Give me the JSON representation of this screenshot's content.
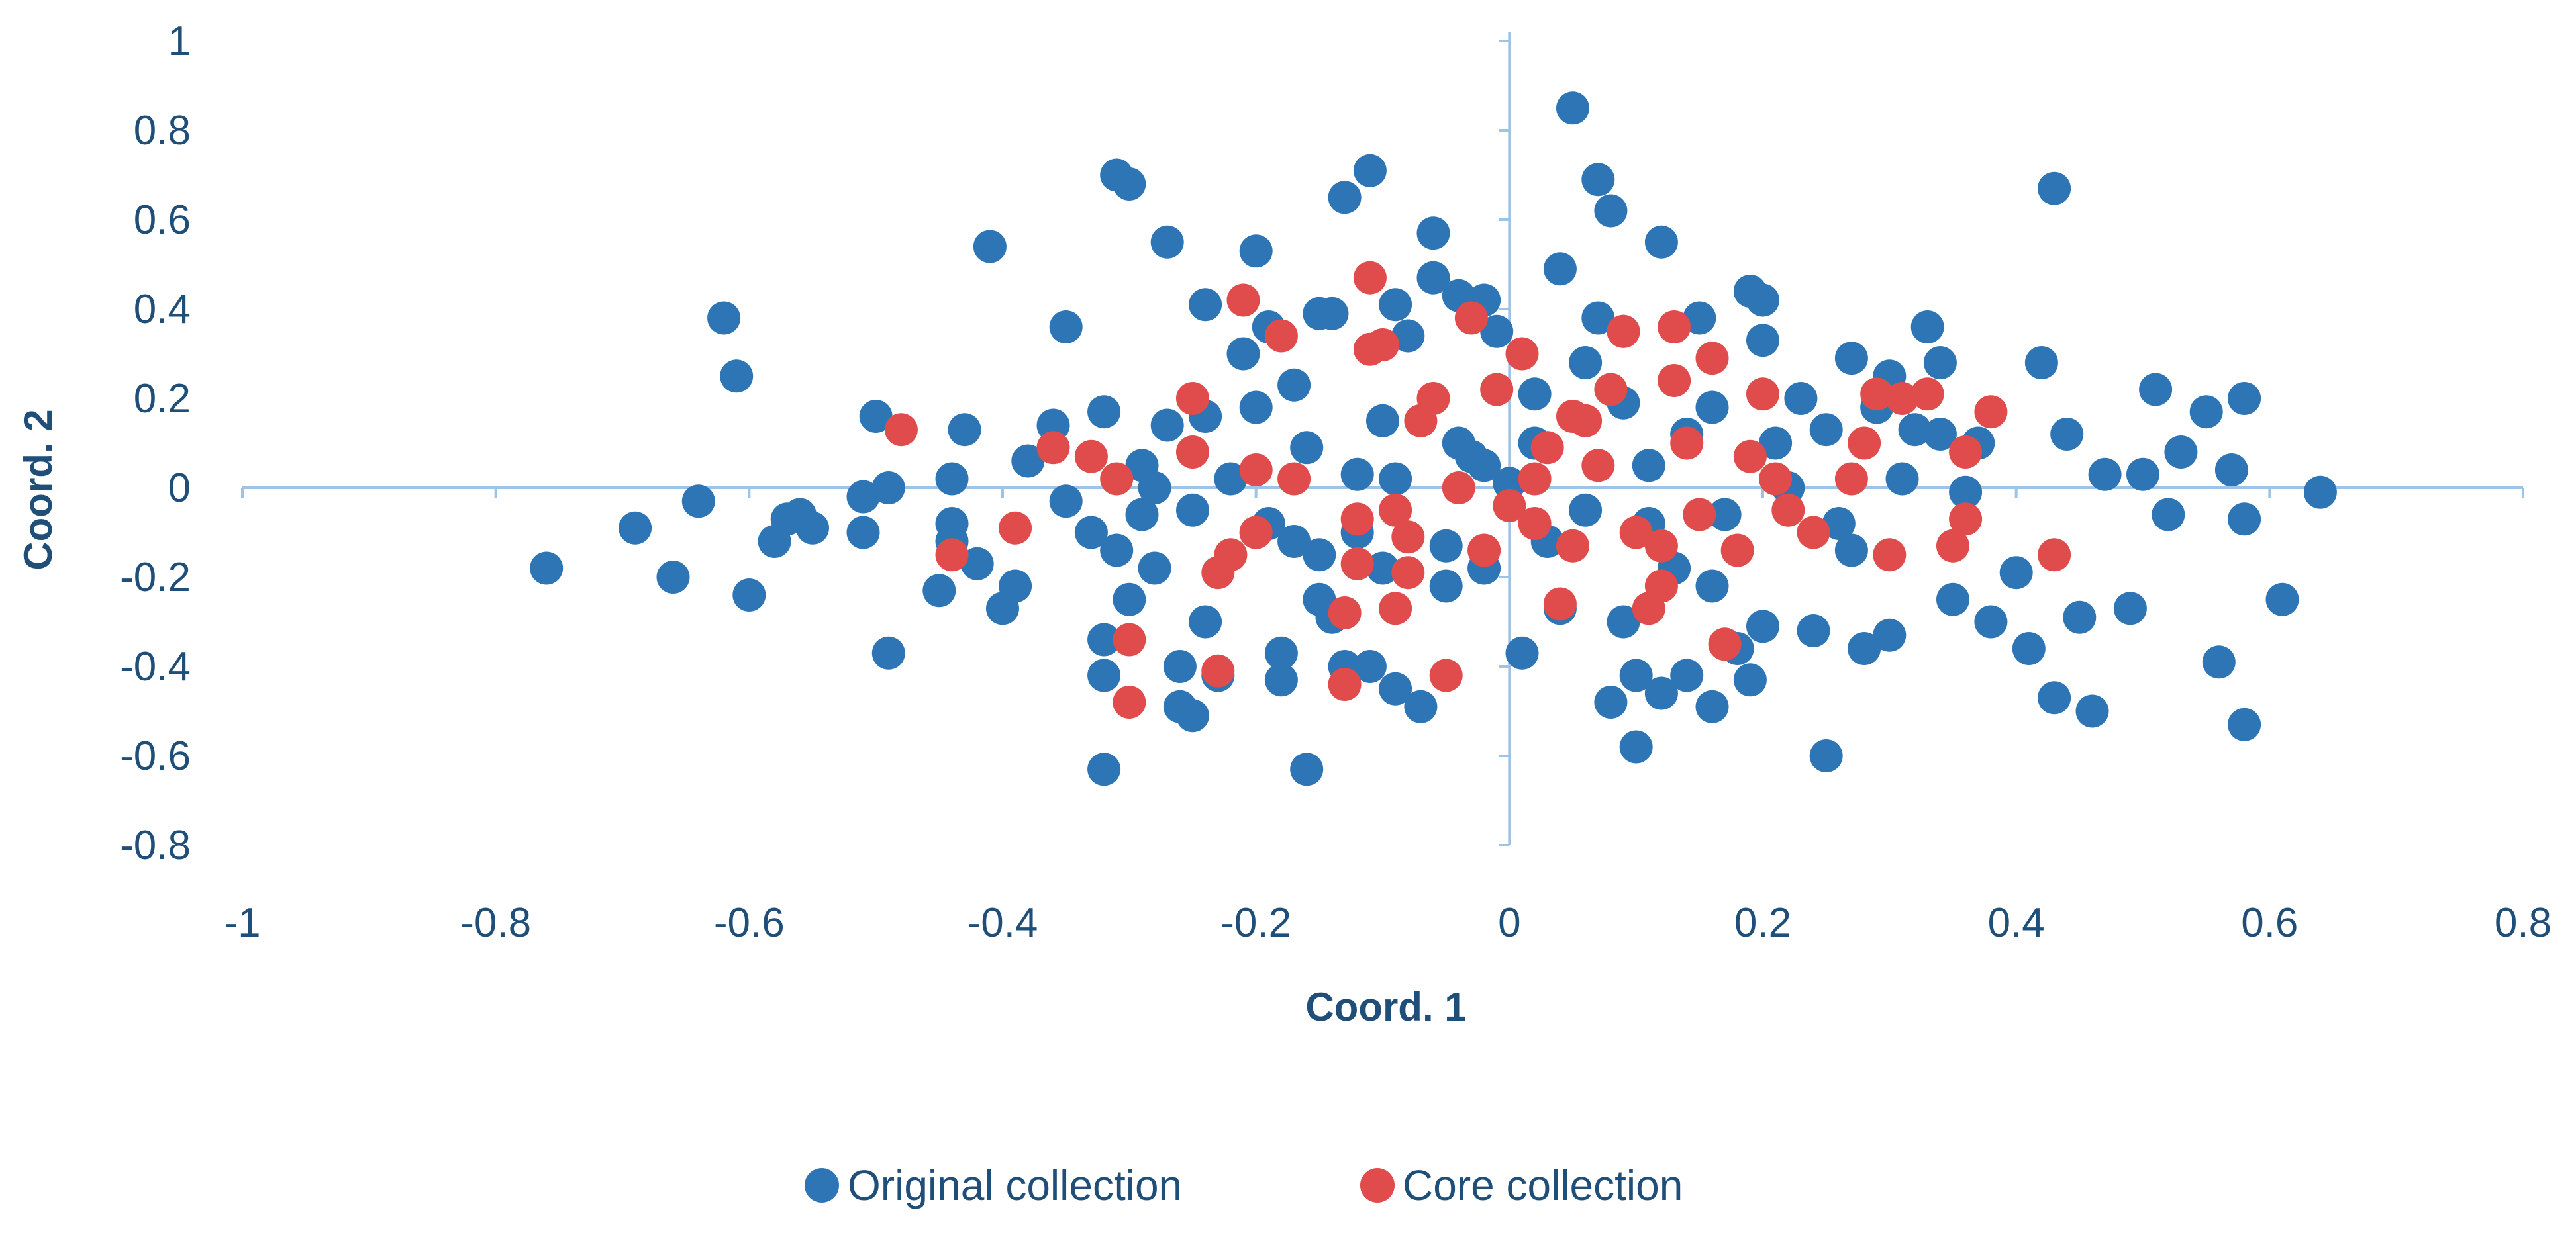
{
  "chart_data": {
    "type": "scatter",
    "title": "",
    "xlabel": "Coord. 1",
    "ylabel": "Coord. 2",
    "xlim": [
      -1,
      0.8
    ],
    "ylim": [
      -0.8,
      1
    ],
    "x_ticks": [
      "-1",
      "-0.8",
      "-0.6",
      "-0.4",
      "-0.2",
      "0",
      "0.2",
      "0.4",
      "0.6",
      "0.8"
    ],
    "y_ticks": [
      "1",
      "0.8",
      "0.6",
      "0.4",
      "0.2",
      "0",
      "-0.2",
      "-0.4",
      "-0.6",
      "-0.8"
    ],
    "grid": false,
    "legend_position": "bottom-center",
    "series": [
      {
        "name": "Original collection",
        "color": "#2e75b6",
        "points": [
          [
            -0.76,
            -0.18
          ],
          [
            -0.69,
            -0.09
          ],
          [
            -0.66,
            -0.2
          ],
          [
            -0.64,
            -0.03
          ],
          [
            -0.62,
            0.38
          ],
          [
            -0.61,
            0.25
          ],
          [
            -0.6,
            -0.24
          ],
          [
            -0.58,
            -0.12
          ],
          [
            -0.57,
            -0.07
          ],
          [
            -0.56,
            -0.06
          ],
          [
            -0.55,
            -0.09
          ],
          [
            -0.51,
            -0.1
          ],
          [
            -0.51,
            -0.02
          ],
          [
            -0.5,
            0.16
          ],
          [
            -0.49,
            0.0
          ],
          [
            -0.49,
            -0.37
          ],
          [
            -0.45,
            -0.23
          ],
          [
            -0.44,
            -0.12
          ],
          [
            -0.44,
            0.02
          ],
          [
            -0.44,
            -0.08
          ],
          [
            -0.43,
            0.13
          ],
          [
            -0.42,
            -0.17
          ],
          [
            -0.4,
            -0.27
          ],
          [
            -0.39,
            -0.22
          ],
          [
            -0.41,
            0.54
          ],
          [
            -0.38,
            0.06
          ],
          [
            -0.35,
            0.36
          ],
          [
            -0.36,
            0.14
          ],
          [
            -0.35,
            -0.03
          ],
          [
            -0.33,
            -0.1
          ],
          [
            -0.32,
            0.17
          ],
          [
            -0.31,
            0.7
          ],
          [
            -0.3,
            0.68
          ],
          [
            -0.32,
            -0.34
          ],
          [
            -0.32,
            -0.42
          ],
          [
            -0.32,
            -0.63
          ],
          [
            -0.31,
            -0.14
          ],
          [
            -0.3,
            -0.25
          ],
          [
            -0.29,
            -0.06
          ],
          [
            -0.29,
            0.05
          ],
          [
            -0.28,
            -0.18
          ],
          [
            -0.27,
            0.14
          ],
          [
            -0.27,
            0.55
          ],
          [
            -0.26,
            -0.4
          ],
          [
            -0.26,
            -0.49
          ],
          [
            -0.25,
            -0.51
          ],
          [
            -0.25,
            -0.05
          ],
          [
            -0.24,
            0.16
          ],
          [
            -0.24,
            -0.3
          ],
          [
            -0.24,
            0.41
          ],
          [
            -0.23,
            -0.42
          ],
          [
            -0.22,
            0.02
          ],
          [
            -0.21,
            0.3
          ],
          [
            -0.2,
            0.53
          ],
          [
            -0.2,
            0.18
          ],
          [
            -0.19,
            -0.08
          ],
          [
            -0.19,
            0.36
          ],
          [
            -0.18,
            -0.37
          ],
          [
            -0.18,
            -0.43
          ],
          [
            -0.17,
            -0.12
          ],
          [
            -0.17,
            0.23
          ],
          [
            -0.16,
            0.09
          ],
          [
            -0.16,
            -0.63
          ],
          [
            -0.15,
            -0.15
          ],
          [
            -0.15,
            0.39
          ],
          [
            -0.14,
            -0.29
          ],
          [
            -0.14,
            0.39
          ],
          [
            -0.13,
            -0.4
          ],
          [
            -0.13,
            0.65
          ],
          [
            -0.12,
            0.03
          ],
          [
            -0.11,
            0.71
          ],
          [
            -0.11,
            -0.4
          ],
          [
            -0.1,
            0.15
          ],
          [
            -0.1,
            -0.18
          ],
          [
            -0.09,
            0.41
          ],
          [
            -0.09,
            -0.45
          ],
          [
            -0.08,
            0.34
          ],
          [
            -0.07,
            -0.49
          ],
          [
            -0.06,
            0.47
          ],
          [
            -0.06,
            0.57
          ],
          [
            -0.05,
            -0.13
          ],
          [
            -0.04,
            0.1
          ],
          [
            -0.04,
            0.43
          ],
          [
            -0.03,
            0.07
          ],
          [
            -0.02,
            0.42
          ],
          [
            -0.02,
            -0.18
          ],
          [
            -0.01,
            0.35
          ],
          [
            0.0,
            0.01
          ],
          [
            0.01,
            -0.37
          ],
          [
            0.02,
            0.21
          ],
          [
            0.03,
            -0.12
          ],
          [
            0.04,
            0.49
          ],
          [
            0.05,
            0.85
          ],
          [
            0.06,
            0.28
          ],
          [
            0.07,
            0.38
          ],
          [
            0.07,
            0.69
          ],
          [
            0.08,
            0.62
          ],
          [
            0.08,
            -0.48
          ],
          [
            0.09,
            0.35
          ],
          [
            0.09,
            -0.3
          ],
          [
            0.1,
            -0.58
          ],
          [
            0.1,
            -0.42
          ],
          [
            0.11,
            0.05
          ],
          [
            0.12,
            0.55
          ],
          [
            0.12,
            -0.46
          ],
          [
            0.13,
            -0.18
          ],
          [
            0.14,
            -0.42
          ],
          [
            0.15,
            0.38
          ],
          [
            0.16,
            0.18
          ],
          [
            0.16,
            -0.49
          ],
          [
            0.17,
            -0.06
          ],
          [
            0.18,
            -0.36
          ],
          [
            0.19,
            -0.43
          ],
          [
            0.19,
            0.44
          ],
          [
            0.2,
            0.42
          ],
          [
            0.2,
            -0.31
          ],
          [
            0.21,
            0.1
          ],
          [
            0.23,
            0.2
          ],
          [
            0.24,
            -0.32
          ],
          [
            0.25,
            -0.6
          ],
          [
            0.25,
            0.13
          ],
          [
            0.26,
            -0.08
          ],
          [
            0.27,
            0.29
          ],
          [
            0.28,
            -0.36
          ],
          [
            0.29,
            0.18
          ],
          [
            0.3,
            -0.33
          ],
          [
            0.31,
            0.02
          ],
          [
            0.32,
            0.13
          ],
          [
            0.33,
            0.36
          ],
          [
            0.34,
            0.28
          ],
          [
            0.35,
            -0.25
          ],
          [
            0.36,
            -0.01
          ],
          [
            0.37,
            0.1
          ],
          [
            0.38,
            -0.3
          ],
          [
            0.4,
            -0.19
          ],
          [
            0.41,
            -0.36
          ],
          [
            0.42,
            0.28
          ],
          [
            0.43,
            0.67
          ],
          [
            0.43,
            -0.47
          ],
          [
            0.44,
            0.12
          ],
          [
            0.45,
            -0.29
          ],
          [
            0.46,
            -0.5
          ],
          [
            0.47,
            0.03
          ],
          [
            0.49,
            -0.27
          ],
          [
            0.5,
            0.03
          ],
          [
            0.51,
            0.22
          ],
          [
            0.52,
            -0.06
          ],
          [
            0.53,
            0.08
          ],
          [
            0.55,
            0.17
          ],
          [
            0.56,
            -0.39
          ],
          [
            0.57,
            0.04
          ],
          [
            0.58,
            -0.53
          ],
          [
            0.58,
            0.2
          ],
          [
            0.58,
            -0.07
          ],
          [
            0.61,
            -0.25
          ],
          [
            0.64,
            -0.01
          ],
          [
            -0.09,
            0.02
          ],
          [
            -0.12,
            -0.1
          ],
          [
            0.06,
            -0.05
          ],
          [
            0.14,
            0.12
          ],
          [
            -0.2,
            -0.1
          ],
          [
            0.22,
            0.0
          ],
          [
            0.02,
            0.1
          ],
          [
            -0.05,
            -0.22
          ],
          [
            0.09,
            0.19
          ],
          [
            0.3,
            0.25
          ],
          [
            0.34,
            0.12
          ],
          [
            0.27,
            -0.14
          ],
          [
            0.16,
            -0.22
          ],
          [
            -0.28,
            0.0
          ],
          [
            -0.15,
            -0.25
          ],
          [
            0.04,
            -0.27
          ],
          [
            0.11,
            -0.08
          ],
          [
            -0.02,
            0.05
          ],
          [
            0.2,
            0.33
          ]
        ]
      },
      {
        "name": "Core collection",
        "color": "#e04b4b",
        "points": [
          [
            -0.48,
            0.13
          ],
          [
            -0.44,
            -0.15
          ],
          [
            -0.39,
            -0.09
          ],
          [
            -0.36,
            0.09
          ],
          [
            -0.33,
            0.07
          ],
          [
            -0.31,
            0.02
          ],
          [
            -0.3,
            -0.34
          ],
          [
            -0.3,
            -0.48
          ],
          [
            -0.25,
            0.2
          ],
          [
            -0.25,
            0.08
          ],
          [
            -0.23,
            -0.41
          ],
          [
            -0.23,
            -0.19
          ],
          [
            -0.22,
            -0.15
          ],
          [
            -0.21,
            0.42
          ],
          [
            -0.2,
            0.04
          ],
          [
            -0.2,
            -0.1
          ],
          [
            -0.18,
            0.34
          ],
          [
            -0.17,
            0.02
          ],
          [
            -0.13,
            -0.44
          ],
          [
            -0.13,
            -0.28
          ],
          [
            -0.12,
            -0.07
          ],
          [
            -0.12,
            -0.17
          ],
          [
            -0.11,
            0.47
          ],
          [
            -0.11,
            0.31
          ],
          [
            -0.1,
            0.32
          ],
          [
            -0.09,
            -0.27
          ],
          [
            -0.09,
            -0.05
          ],
          [
            -0.08,
            -0.19
          ],
          [
            -0.07,
            0.15
          ],
          [
            -0.06,
            0.2
          ],
          [
            -0.05,
            -0.42
          ],
          [
            -0.04,
            0.0
          ],
          [
            -0.03,
            0.38
          ],
          [
            -0.02,
            -0.14
          ],
          [
            -0.01,
            0.22
          ],
          [
            0.0,
            -0.04
          ],
          [
            0.01,
            0.3
          ],
          [
            0.02,
            -0.08
          ],
          [
            0.03,
            0.09
          ],
          [
            0.04,
            -0.26
          ],
          [
            0.05,
            -0.13
          ],
          [
            0.06,
            0.15
          ],
          [
            0.07,
            0.05
          ],
          [
            0.08,
            0.22
          ],
          [
            0.09,
            0.35
          ],
          [
            0.1,
            -0.1
          ],
          [
            0.11,
            -0.27
          ],
          [
            0.12,
            -0.22
          ],
          [
            0.13,
            0.36
          ],
          [
            0.13,
            0.24
          ],
          [
            0.14,
            0.1
          ],
          [
            0.15,
            -0.06
          ],
          [
            0.16,
            0.29
          ],
          [
            0.17,
            -0.35
          ],
          [
            0.18,
            -0.14
          ],
          [
            0.19,
            0.07
          ],
          [
            0.2,
            0.21
          ],
          [
            0.21,
            0.02
          ],
          [
            0.22,
            -0.05
          ],
          [
            0.24,
            -0.1
          ],
          [
            0.27,
            0.02
          ],
          [
            0.28,
            0.1
          ],
          [
            0.29,
            0.21
          ],
          [
            0.3,
            -0.15
          ],
          [
            0.31,
            0.2
          ],
          [
            0.33,
            0.21
          ],
          [
            0.35,
            -0.13
          ],
          [
            0.36,
            0.08
          ],
          [
            0.36,
            -0.07
          ],
          [
            0.38,
            0.17
          ],
          [
            0.43,
            -0.15
          ],
          [
            0.05,
            0.16
          ],
          [
            -0.08,
            -0.11
          ],
          [
            0.12,
            -0.13
          ],
          [
            0.02,
            0.02
          ]
        ]
      }
    ]
  }
}
